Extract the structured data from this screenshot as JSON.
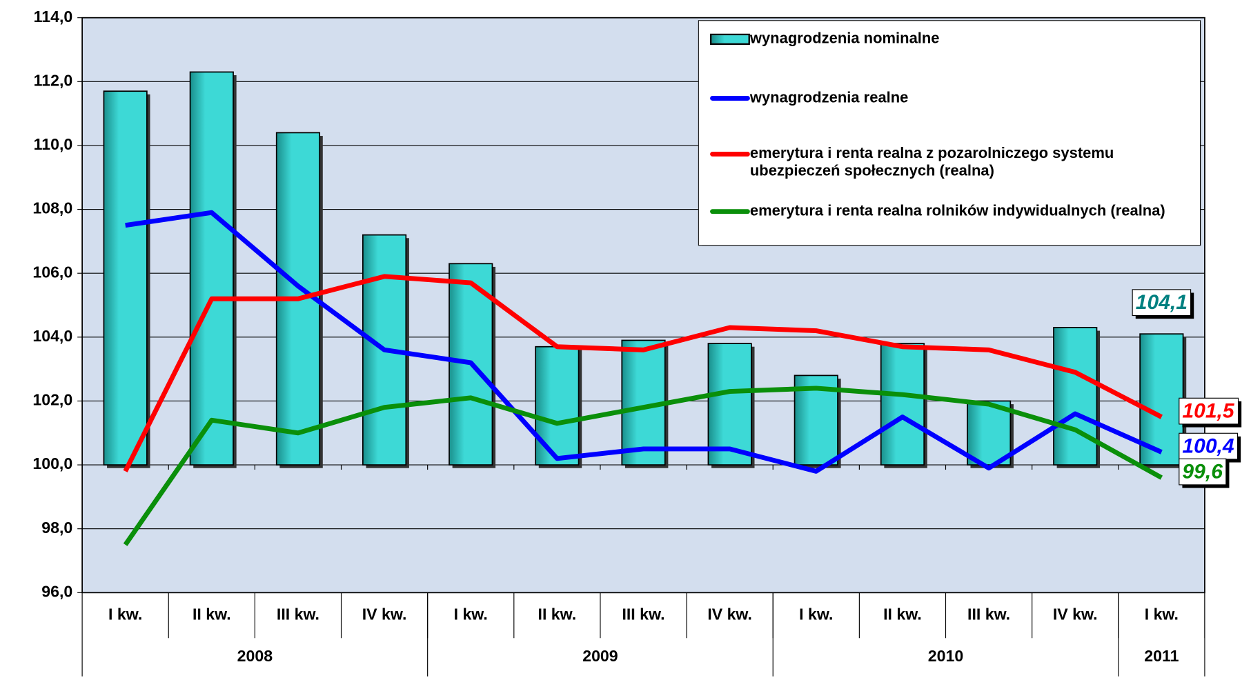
{
  "chart_data": {
    "type": "bar-line",
    "categories": [
      "I kw.",
      "II kw.",
      "III kw.",
      "IV kw.",
      "I kw.",
      "II kw.",
      "III kw.",
      "IV kw.",
      "I kw.",
      "II kw.",
      "III kw.",
      "IV kw.",
      "I kw."
    ],
    "groups": [
      {
        "label": "2008",
        "span": 4
      },
      {
        "label": "2009",
        "span": 4
      },
      {
        "label": "2010",
        "span": 4
      },
      {
        "label": "2011",
        "span": 1
      }
    ],
    "ylim": [
      96,
      114
    ],
    "yticks": [
      {
        "value": 96,
        "label": "96,0"
      },
      {
        "value": 98,
        "label": "98,0"
      },
      {
        "value": 100,
        "label": "100,0"
      },
      {
        "value": 102,
        "label": "102,0"
      },
      {
        "value": 104,
        "label": "104,0"
      },
      {
        "value": 106,
        "label": "106,0"
      },
      {
        "value": 108,
        "label": "108,0"
      },
      {
        "value": 110,
        "label": "110,0"
      },
      {
        "value": 112,
        "label": "112,0"
      },
      {
        "value": 114,
        "label": "114,0"
      }
    ],
    "bar_base": 100,
    "grid": true,
    "legend": "top-right",
    "series": [
      {
        "name": "wynagrodzenia nominalne",
        "kind": "bar",
        "color": "#3dd9d6",
        "label_color": "#008080",
        "values": [
          111.7,
          112.3,
          110.4,
          107.2,
          106.3,
          103.7,
          103.9,
          103.8,
          102.8,
          103.8,
          102.0,
          104.3,
          104.1
        ],
        "value_labels": [
          null,
          null,
          null,
          null,
          null,
          null,
          null,
          null,
          null,
          null,
          null,
          null,
          "104,1"
        ]
      },
      {
        "name": "wynagrodzenia realne",
        "kind": "line",
        "color": "#0000ff",
        "label_color": "#0000ff",
        "values": [
          107.5,
          107.9,
          105.6,
          103.6,
          103.2,
          100.2,
          100.5,
          100.5,
          99.8,
          101.5,
          99.9,
          101.6,
          100.4
        ],
        "value_labels": [
          null,
          null,
          null,
          null,
          null,
          null,
          null,
          null,
          null,
          null,
          null,
          null,
          "100,4"
        ]
      },
      {
        "name": "emerytura i renta realna z pozarolniczego systemu ubezpieczeń społecznych (realna)",
        "kind": "line",
        "color": "#ff0000",
        "label_color": "#ff0000",
        "values": [
          99.8,
          105.2,
          105.2,
          105.9,
          105.7,
          103.7,
          103.6,
          104.3,
          104.2,
          103.7,
          103.6,
          102.9,
          101.5
        ],
        "value_labels": [
          null,
          null,
          null,
          null,
          null,
          null,
          null,
          null,
          null,
          null,
          null,
          null,
          "101,5"
        ]
      },
      {
        "name": "emerytura i renta realna rolników indywidualnych (realna)",
        "kind": "line",
        "color": "#0a8f0a",
        "label_color": "#0a8f0a",
        "values": [
          97.5,
          101.4,
          101.0,
          101.8,
          102.1,
          101.3,
          101.8,
          102.3,
          102.4,
          102.2,
          101.9,
          101.1,
          99.6
        ],
        "value_labels": [
          null,
          null,
          null,
          null,
          null,
          null,
          null,
          null,
          null,
          null,
          null,
          null,
          "99,6"
        ]
      }
    ]
  }
}
